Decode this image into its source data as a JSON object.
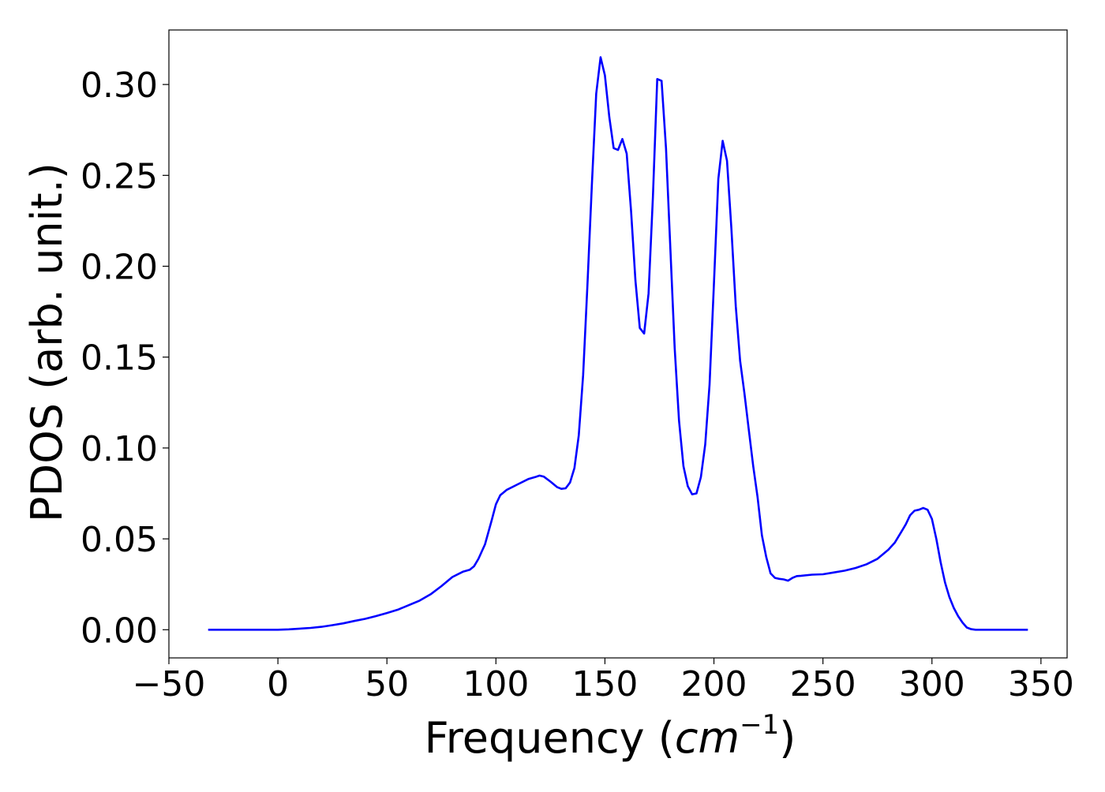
{
  "chart_data": {
    "type": "line",
    "title": "",
    "xlabel": {
      "text": "Frequency (",
      "unit_base": "cm",
      "unit_exponent": "−1",
      "close": ")"
    },
    "ylabel": "PDOS (arb. unit.)",
    "xlim": [
      -50,
      362
    ],
    "ylim": [
      -0.0155,
      0.33
    ],
    "xticks": [
      -50,
      0,
      50,
      100,
      150,
      200,
      250,
      300,
      350
    ],
    "xtick_labels": [
      "−50",
      "0",
      "50",
      "100",
      "150",
      "200",
      "250",
      "300",
      "350"
    ],
    "yticks": [
      0.0,
      0.05,
      0.1,
      0.15,
      0.2,
      0.25,
      0.3
    ],
    "ytick_labels": [
      "0.00",
      "0.05",
      "0.10",
      "0.15",
      "0.20",
      "0.25",
      "0.30"
    ],
    "grid": false,
    "legend": "none",
    "colors": {
      "line": "#0000ff",
      "axes": "#000000",
      "background": "#ffffff"
    },
    "series": [
      {
        "x": [
          -32,
          -20,
          -10,
          0,
          5,
          10,
          15,
          20,
          25,
          30,
          35,
          40,
          45,
          50,
          55,
          60,
          65,
          70,
          75,
          80,
          85,
          88,
          90,
          92,
          95,
          98,
          100,
          102,
          105,
          110,
          115,
          118,
          120,
          122,
          125,
          128,
          130,
          132,
          134,
          136,
          138,
          140,
          142,
          144,
          146,
          148,
          150,
          152,
          154,
          156,
          158,
          160,
          162,
          164,
          166,
          168,
          170,
          172,
          174,
          176,
          178,
          180,
          182,
          184,
          186,
          188,
          190,
          192,
          194,
          196,
          198,
          200,
          202,
          204,
          206,
          208,
          210,
          212,
          214,
          216,
          218,
          220,
          222,
          224,
          226,
          228,
          230,
          232,
          234,
          236,
          238,
          240,
          245,
          250,
          255,
          260,
          265,
          270,
          275,
          280,
          283,
          286,
          288,
          290,
          292,
          294,
          296,
          298,
          300,
          302,
          304,
          306,
          308,
          310,
          312,
          314,
          316,
          318,
          320,
          325,
          330,
          335,
          344
        ],
        "y": [
          0.0,
          0.0,
          0.0,
          0.0,
          0.0002,
          0.0006,
          0.001,
          0.0016,
          0.0025,
          0.0035,
          0.0048,
          0.006,
          0.0075,
          0.0092,
          0.011,
          0.0135,
          0.016,
          0.0195,
          0.024,
          0.029,
          0.032,
          0.033,
          0.035,
          0.039,
          0.047,
          0.06,
          0.069,
          0.074,
          0.077,
          0.08,
          0.083,
          0.084,
          0.0848,
          0.0842,
          0.0815,
          0.0785,
          0.0775,
          0.0778,
          0.081,
          0.089,
          0.107,
          0.14,
          0.19,
          0.245,
          0.295,
          0.315,
          0.305,
          0.282,
          0.265,
          0.264,
          0.27,
          0.262,
          0.23,
          0.192,
          0.166,
          0.163,
          0.185,
          0.238,
          0.303,
          0.302,
          0.265,
          0.21,
          0.155,
          0.115,
          0.09,
          0.079,
          0.0745,
          0.075,
          0.084,
          0.102,
          0.135,
          0.19,
          0.248,
          0.269,
          0.258,
          0.221,
          0.178,
          0.148,
          0.13,
          0.11,
          0.09,
          0.073,
          0.052,
          0.04,
          0.031,
          0.0285,
          0.028,
          0.0277,
          0.027,
          0.0285,
          0.0295,
          0.0297,
          0.0303,
          0.0305,
          0.0315,
          0.0325,
          0.034,
          0.036,
          0.039,
          0.044,
          0.048,
          0.054,
          0.058,
          0.063,
          0.0655,
          0.066,
          0.067,
          0.066,
          0.061,
          0.05,
          0.037,
          0.026,
          0.018,
          0.012,
          0.0075,
          0.004,
          0.0012,
          0.0003,
          0.0,
          0.0,
          0.0,
          0.0,
          0.0
        ]
      }
    ]
  }
}
